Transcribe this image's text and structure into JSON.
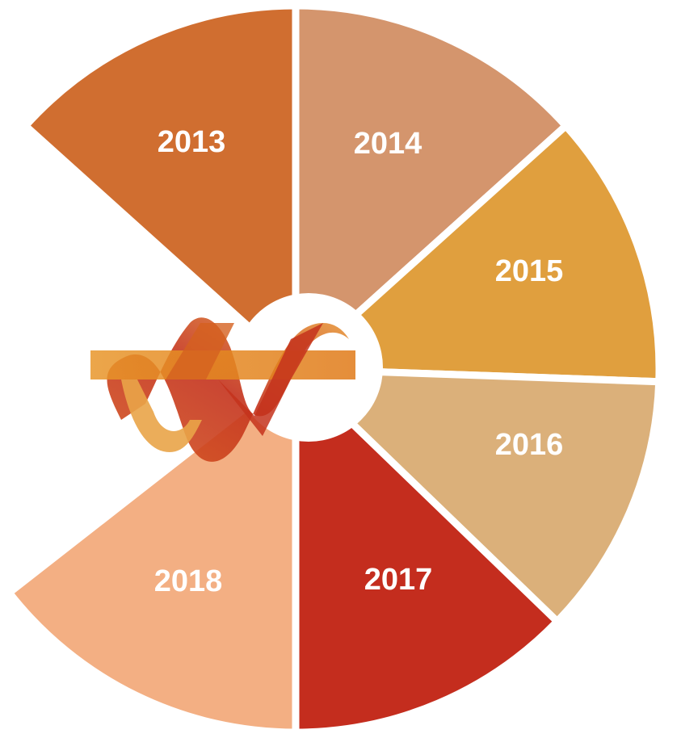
{
  "nodes": [
    {
      "label": "2013"
    },
    {
      "label": "2014"
    },
    {
      "label": "2015"
    },
    {
      "label": "2016"
    },
    {
      "label": "2017"
    },
    {
      "label": "2018"
    }
  ]
}
